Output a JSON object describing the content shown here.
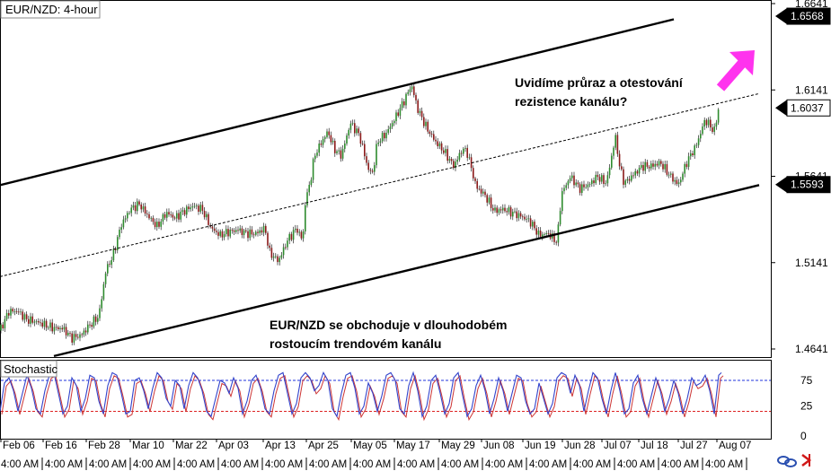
{
  "chart_data": {
    "type": "line",
    "title": "EUR/NZD: 4-hour",
    "price_axis": {
      "ticks": [
        "1.6641",
        "1.6141",
        "1.5641",
        "1.5141",
        "1.4641"
      ],
      "markers": [
        {
          "label": "1.6568",
          "value": 1.6568,
          "style": "dark"
        },
        {
          "label": "1.6037",
          "value": 1.6037,
          "style": "light"
        },
        {
          "label": "1.5593",
          "value": 1.5593,
          "style": "dark"
        }
      ]
    },
    "date_labels": [
      "Feb 06",
      "Feb 16",
      "Feb 28",
      "Mar 10",
      "Mar 22",
      "Apr 03",
      "Apr 13",
      "Apr 25",
      "May 05",
      "May 17",
      "May 29",
      "Jun 08",
      "Jun 19",
      "Jun 28",
      "Jul 07",
      "Jul 18",
      "Jul 27",
      "Aug 07"
    ],
    "time_strip": "4:00 AM",
    "price_series": [
      [
        0,
        1.4748
      ],
      [
        10,
        1.486
      ],
      [
        20,
        1.486
      ],
      [
        30,
        1.481
      ],
      [
        40,
        1.48
      ],
      [
        50,
        1.478
      ],
      [
        60,
        1.4762
      ],
      [
        70,
        1.476
      ],
      [
        80,
        1.4705
      ],
      [
        90,
        1.472
      ],
      [
        100,
        1.478
      ],
      [
        110,
        1.483
      ],
      [
        118,
        1.51
      ],
      [
        125,
        1.517
      ],
      [
        135,
        1.536
      ],
      [
        145,
        1.545
      ],
      [
        155,
        1.548
      ],
      [
        165,
        1.541
      ],
      [
        175,
        1.535
      ],
      [
        185,
        1.543
      ],
      [
        195,
        1.54
      ],
      [
        205,
        1.544
      ],
      [
        215,
        1.547
      ],
      [
        225,
        1.545
      ],
      [
        235,
        1.534
      ],
      [
        245,
        1.53
      ],
      [
        255,
        1.532
      ],
      [
        265,
        1.533
      ],
      [
        275,
        1.531
      ],
      [
        285,
        1.531
      ],
      [
        295,
        1.534
      ],
      [
        300,
        1.52
      ],
      [
        310,
        1.515
      ],
      [
        320,
        1.527
      ],
      [
        330,
        1.534
      ],
      [
        337,
        1.527
      ],
      [
        340,
        1.55
      ],
      [
        345,
        1.56
      ],
      [
        350,
        1.576
      ],
      [
        358,
        1.584
      ],
      [
        365,
        1.59
      ],
      [
        372,
        1.58
      ],
      [
        380,
        1.576
      ],
      [
        390,
        1.595
      ],
      [
        400,
        1.588
      ],
      [
        410,
        1.568
      ],
      [
        415,
        1.566
      ],
      [
        420,
        1.584
      ],
      [
        430,
        1.589
      ],
      [
        440,
        1.598
      ],
      [
        450,
        1.608
      ],
      [
        458,
        1.617
      ],
      [
        465,
        1.603
      ],
      [
        475,
        1.592
      ],
      [
        485,
        1.584
      ],
      [
        495,
        1.578
      ],
      [
        505,
        1.57
      ],
      [
        515,
        1.58
      ],
      [
        520,
        1.578
      ],
      [
        530,
        1.558
      ],
      [
        540,
        1.553
      ],
      [
        550,
        1.544
      ],
      [
        560,
        1.545
      ],
      [
        570,
        1.543
      ],
      [
        580,
        1.541
      ],
      [
        590,
        1.538
      ],
      [
        600,
        1.53
      ],
      [
        610,
        1.531
      ],
      [
        620,
        1.526
      ],
      [
        625,
        1.554
      ],
      [
        635,
        1.564
      ],
      [
        645,
        1.557
      ],
      [
        655,
        1.559
      ],
      [
        665,
        1.564
      ],
      [
        675,
        1.56
      ],
      [
        685,
        1.587
      ],
      [
        690,
        1.569
      ],
      [
        695,
        1.56
      ],
      [
        705,
        1.565
      ],
      [
        715,
        1.57
      ],
      [
        725,
        1.57
      ],
      [
        735,
        1.572
      ],
      [
        745,
        1.565
      ],
      [
        755,
        1.559
      ],
      [
        765,
        1.573
      ],
      [
        775,
        1.582
      ],
      [
        785,
        1.597
      ],
      [
        795,
        1.59
      ],
      [
        800,
        1.6037
      ]
    ],
    "channel": {
      "upper": [
        [
          0,
          1.559
        ],
        [
          750,
          1.655
        ]
      ],
      "middle": [
        [
          0,
          1.506
        ],
        [
          845,
          1.612
        ]
      ],
      "lower": [
        [
          60,
          1.46
        ],
        [
          845,
          1.559
        ]
      ]
    },
    "annotations": [
      {
        "lines": [
          "Uvidíme průraz a otestování",
          "rezistence kanálu?"
        ]
      },
      {
        "lines": [
          "EUR/NZD se obchoduje v dlouhodobém",
          "rostoucím trendovém kanálu"
        ]
      }
    ],
    "stochastic": {
      "title": "Stochastic",
      "ticks": [
        "75",
        "25",
        "0"
      ],
      "levels": [
        80,
        20
      ],
      "main": [
        [
          0,
          20
        ],
        [
          5,
          75
        ],
        [
          10,
          85
        ],
        [
          15,
          60
        ],
        [
          20,
          20
        ],
        [
          25,
          55
        ],
        [
          30,
          90
        ],
        [
          35,
          65
        ],
        [
          40,
          25
        ],
        [
          45,
          15
        ],
        [
          50,
          60
        ],
        [
          55,
          90
        ],
        [
          60,
          95
        ],
        [
          65,
          55
        ],
        [
          70,
          15
        ],
        [
          75,
          30
        ],
        [
          80,
          85
        ],
        [
          85,
          70
        ],
        [
          90,
          20
        ],
        [
          95,
          45
        ],
        [
          100,
          90
        ],
        [
          105,
          85
        ],
        [
          110,
          40
        ],
        [
          115,
          15
        ],
        [
          120,
          70
        ],
        [
          125,
          95
        ],
        [
          130,
          90
        ],
        [
          135,
          55
        ],
        [
          140,
          15
        ],
        [
          145,
          20
        ],
        [
          150,
          80
        ],
        [
          155,
          85
        ],
        [
          160,
          60
        ],
        [
          165,
          25
        ],
        [
          170,
          65
        ],
        [
          175,
          95
        ],
        [
          180,
          85
        ],
        [
          185,
          45
        ],
        [
          190,
          30
        ],
        [
          195,
          80
        ],
        [
          200,
          70
        ],
        [
          205,
          25
        ],
        [
          210,
          70
        ],
        [
          215,
          95
        ],
        [
          220,
          85
        ],
        [
          225,
          60
        ],
        [
          230,
          20
        ],
        [
          235,
          10
        ],
        [
          240,
          45
        ],
        [
          245,
          80
        ],
        [
          250,
          75
        ],
        [
          255,
          55
        ],
        [
          260,
          85
        ],
        [
          265,
          65
        ],
        [
          270,
          15
        ],
        [
          275,
          40
        ],
        [
          280,
          80
        ],
        [
          285,
          90
        ],
        [
          290,
          65
        ],
        [
          295,
          25
        ],
        [
          300,
          15
        ],
        [
          305,
          60
        ],
        [
          310,
          90
        ],
        [
          315,
          95
        ],
        [
          320,
          55
        ],
        [
          325,
          15
        ],
        [
          330,
          35
        ],
        [
          335,
          85
        ],
        [
          340,
          95
        ],
        [
          345,
          85
        ],
        [
          350,
          60
        ],
        [
          355,
          70
        ],
        [
          360,
          95
        ],
        [
          365,
          80
        ],
        [
          370,
          25
        ],
        [
          375,
          10
        ],
        [
          380,
          55
        ],
        [
          385,
          90
        ],
        [
          390,
          95
        ],
        [
          395,
          65
        ],
        [
          400,
          15
        ],
        [
          405,
          30
        ],
        [
          410,
          75
        ],
        [
          415,
          55
        ],
        [
          420,
          20
        ],
        [
          425,
          50
        ],
        [
          430,
          90
        ],
        [
          435,
          95
        ],
        [
          440,
          80
        ],
        [
          445,
          25
        ],
        [
          450,
          15
        ],
        [
          455,
          70
        ],
        [
          460,
          95
        ],
        [
          465,
          60
        ],
        [
          470,
          10
        ],
        [
          475,
          30
        ],
        [
          480,
          80
        ],
        [
          485,
          90
        ],
        [
          490,
          55
        ],
        [
          495,
          15
        ],
        [
          500,
          35
        ],
        [
          505,
          85
        ],
        [
          510,
          95
        ],
        [
          515,
          50
        ],
        [
          520,
          10
        ],
        [
          525,
          25
        ],
        [
          530,
          70
        ],
        [
          535,
          90
        ],
        [
          540,
          60
        ],
        [
          545,
          15
        ],
        [
          550,
          45
        ],
        [
          555,
          85
        ],
        [
          560,
          60
        ],
        [
          565,
          20
        ],
        [
          570,
          55
        ],
        [
          575,
          90
        ],
        [
          580,
          85
        ],
        [
          585,
          40
        ],
        [
          590,
          15
        ],
        [
          595,
          25
        ],
        [
          600,
          75
        ],
        [
          605,
          45
        ],
        [
          610,
          15
        ],
        [
          615,
          35
        ],
        [
          620,
          85
        ],
        [
          625,
          95
        ],
        [
          630,
          90
        ],
        [
          635,
          55
        ],
        [
          640,
          90
        ],
        [
          645,
          70
        ],
        [
          650,
          20
        ],
        [
          655,
          60
        ],
        [
          660,
          95
        ],
        [
          665,
          85
        ],
        [
          670,
          45
        ],
        [
          675,
          15
        ],
        [
          680,
          60
        ],
        [
          685,
          95
        ],
        [
          690,
          60
        ],
        [
          695,
          15
        ],
        [
          700,
          25
        ],
        [
          705,
          75
        ],
        [
          710,
          90
        ],
        [
          715,
          45
        ],
        [
          720,
          15
        ],
        [
          725,
          50
        ],
        [
          730,
          85
        ],
        [
          735,
          60
        ],
        [
          740,
          20
        ],
        [
          745,
          45
        ],
        [
          750,
          80
        ],
        [
          755,
          55
        ],
        [
          760,
          15
        ],
        [
          765,
          45
        ],
        [
          770,
          85
        ],
        [
          775,
          70
        ],
        [
          780,
          75
        ],
        [
          785,
          90
        ],
        [
          790,
          60
        ],
        [
          795,
          15
        ],
        [
          800,
          90
        ],
        [
          803,
          95
        ]
      ]
    }
  },
  "colors": {
    "up_candle": "#2e8b2e",
    "down_candle": "#8b1a1a",
    "channel": "#000000",
    "stoch_main": "#3344cc",
    "stoch_signal": "#cc3333",
    "level_high": "#2233dd",
    "level_low": "#dd2222",
    "arrow": "#ff33ee"
  },
  "icons": [
    "link-icon",
    "arrow-icon"
  ]
}
